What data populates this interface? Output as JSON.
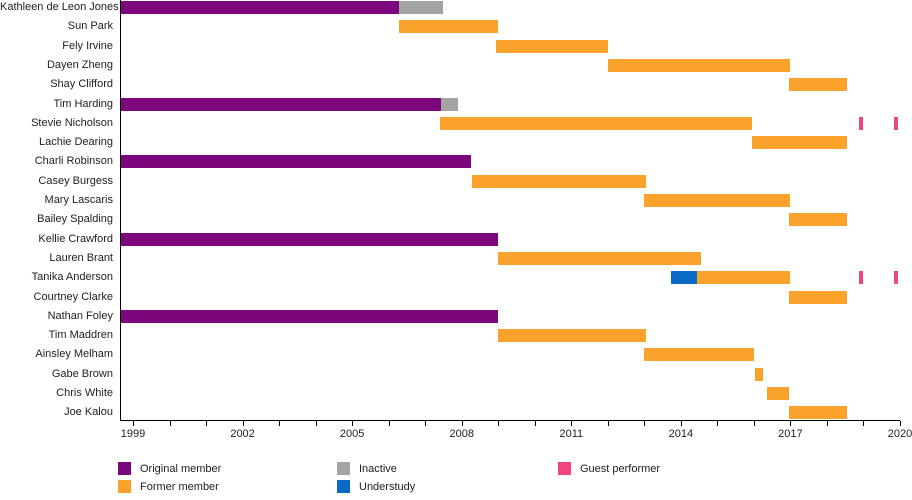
{
  "chart_data": {
    "type": "bar",
    "subtype": "gantt-timeline",
    "title": "",
    "x_axis": {
      "left_edge_year": 1998.64,
      "right_edge_year": 2020.0,
      "first_tick_year": 1999,
      "last_tick_year": 2020,
      "tick_interval": 1,
      "label_interval": 3,
      "tick_labels": [
        "1999",
        "2002",
        "2005",
        "2008",
        "2011",
        "2014",
        "2017",
        "2020"
      ]
    },
    "colors": {
      "original": "#7c067c",
      "former": "#faa22b",
      "inactive": "#a3a3a3",
      "understudy": "#0a69c7",
      "guest": "#f2457e",
      "axis": "#000000",
      "text": "#202122"
    },
    "legend": [
      {
        "label": "Original member",
        "key": "original"
      },
      {
        "label": "Former member",
        "key": "former"
      },
      {
        "label": "Inactive",
        "key": "inactive"
      },
      {
        "label": "Understudy",
        "key": "understudy"
      },
      {
        "label": "Guest performer",
        "key": "guest"
      }
    ],
    "members": [
      {
        "name": "Kathleen de Leon Jones",
        "segments": [
          {
            "type": "original",
            "start": 1998.64,
            "end": 2006.27
          },
          {
            "type": "inactive",
            "start": 2006.27,
            "end": 2007.5
          }
        ]
      },
      {
        "name": "Sun Park",
        "segments": [
          {
            "type": "former",
            "start": 2006.27,
            "end": 2009.0
          }
        ]
      },
      {
        "name": "Fely Irvine",
        "segments": [
          {
            "type": "former",
            "start": 2008.95,
            "end": 2012.0
          }
        ]
      },
      {
        "name": "Dayen Zheng",
        "segments": [
          {
            "type": "former",
            "start": 2012.0,
            "end": 2017.0
          }
        ]
      },
      {
        "name": "Shay Clifford",
        "segments": [
          {
            "type": "former",
            "start": 2016.95,
            "end": 2018.55
          }
        ]
      },
      {
        "name": "Tim Harding",
        "segments": [
          {
            "type": "original",
            "start": 1998.64,
            "end": 2007.43
          },
          {
            "type": "inactive",
            "start": 2007.43,
            "end": 2007.9
          }
        ]
      },
      {
        "name": "Stevie Nicholson",
        "segments": [
          {
            "type": "former",
            "start": 2007.4,
            "end": 2015.95
          },
          {
            "type": "guest",
            "start": 2018.88,
            "end": 2018.98
          },
          {
            "type": "guest",
            "start": 2019.84,
            "end": 2019.94
          }
        ]
      },
      {
        "name": "Lachie Dearing",
        "segments": [
          {
            "type": "former",
            "start": 2015.95,
            "end": 2018.55
          }
        ]
      },
      {
        "name": "Charli Robinson",
        "segments": [
          {
            "type": "original",
            "start": 1998.64,
            "end": 2008.26
          }
        ]
      },
      {
        "name": "Casey Burgess",
        "segments": [
          {
            "type": "former",
            "start": 2008.28,
            "end": 2013.05
          }
        ]
      },
      {
        "name": "Mary Lascaris",
        "segments": [
          {
            "type": "former",
            "start": 2013.0,
            "end": 2017.0
          }
        ]
      },
      {
        "name": "Bailey Spalding",
        "segments": [
          {
            "type": "former",
            "start": 2016.95,
            "end": 2018.55
          }
        ]
      },
      {
        "name": "Kellie Crawford",
        "segments": [
          {
            "type": "original",
            "start": 1998.64,
            "end": 2009.0
          }
        ]
      },
      {
        "name": "Lauren Brant",
        "segments": [
          {
            "type": "former",
            "start": 2009.0,
            "end": 2014.56
          }
        ]
      },
      {
        "name": "Tanika Anderson",
        "segments": [
          {
            "type": "understudy",
            "start": 2013.73,
            "end": 2014.45
          },
          {
            "type": "former",
            "start": 2014.45,
            "end": 2017.0
          },
          {
            "type": "guest",
            "start": 2018.88,
            "end": 2018.98
          },
          {
            "type": "guest",
            "start": 2019.84,
            "end": 2019.94
          }
        ]
      },
      {
        "name": "Courtney Clarke",
        "segments": [
          {
            "type": "former",
            "start": 2016.95,
            "end": 2018.55
          }
        ]
      },
      {
        "name": "Nathan Foley",
        "segments": [
          {
            "type": "original",
            "start": 1998.64,
            "end": 2009.0
          }
        ]
      },
      {
        "name": "Tim Maddren",
        "segments": [
          {
            "type": "former",
            "start": 2009.0,
            "end": 2013.05
          }
        ]
      },
      {
        "name": "Ainsley Melham",
        "segments": [
          {
            "type": "former",
            "start": 2013.0,
            "end": 2016.0
          }
        ]
      },
      {
        "name": "Gabe Brown",
        "segments": [
          {
            "type": "former",
            "start": 2016.03,
            "end": 2016.26
          }
        ]
      },
      {
        "name": "Chris White",
        "segments": [
          {
            "type": "former",
            "start": 2016.36,
            "end": 2016.97
          }
        ]
      },
      {
        "name": "Joe Kalou",
        "segments": [
          {
            "type": "former",
            "start": 2016.95,
            "end": 2018.55
          }
        ]
      }
    ]
  }
}
